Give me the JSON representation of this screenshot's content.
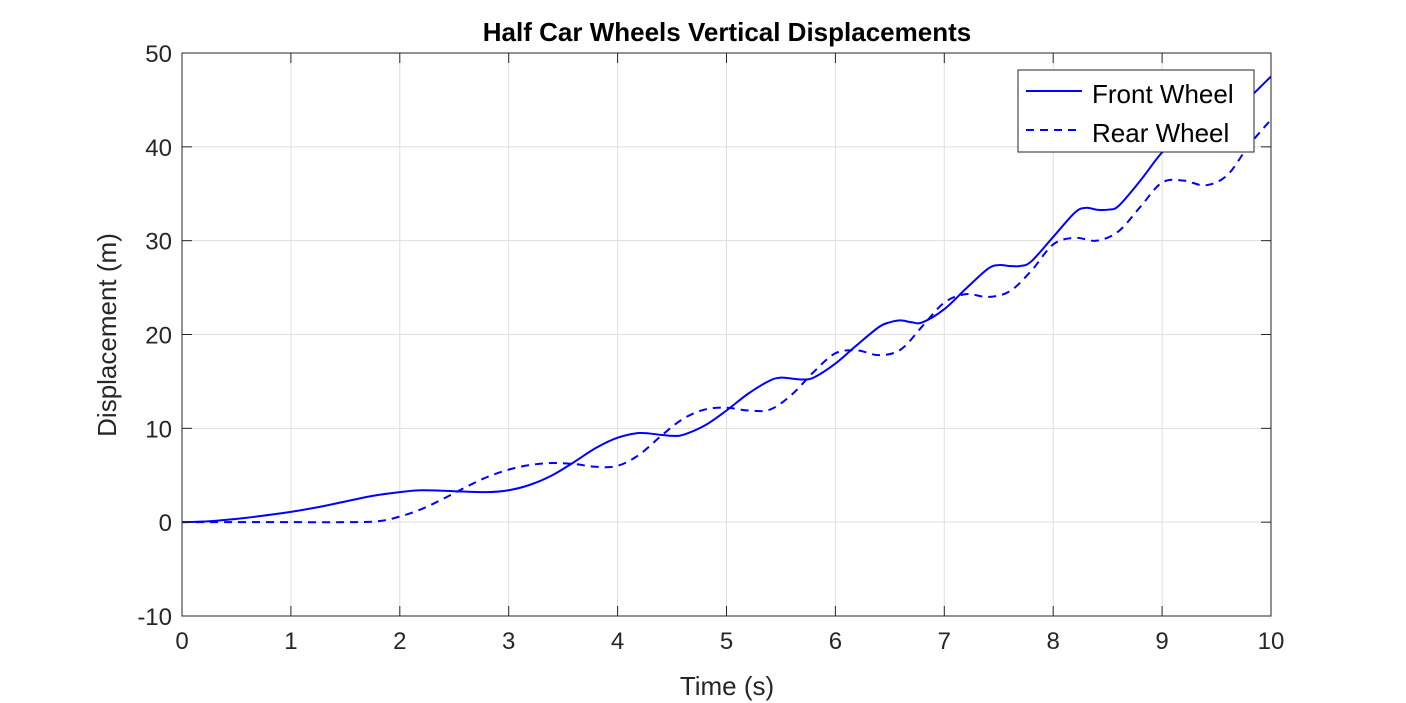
{
  "chart_data": {
    "type": "line",
    "title": "Half Car Wheels Vertical Displacements",
    "xlabel": "Time (s)",
    "ylabel": "Displacement (m)",
    "xlim": [
      0,
      10
    ],
    "ylim": [
      -10,
      50
    ],
    "xticks": [
      0,
      1,
      2,
      3,
      4,
      5,
      6,
      7,
      8,
      9,
      10
    ],
    "yticks": [
      -10,
      0,
      10,
      20,
      30,
      40,
      50
    ],
    "xtick_labels": [
      "0",
      "1",
      "2",
      "3",
      "4",
      "5",
      "6",
      "7",
      "8",
      "9",
      "10"
    ],
    "ytick_labels": [
      "-10",
      "0",
      "10",
      "20",
      "30",
      "40",
      "50"
    ],
    "grid": true,
    "legend_position": "top-right",
    "series": [
      {
        "name": "Front Wheel",
        "style": "solid",
        "color": "#0000ff",
        "x": [
          0,
          0.25,
          0.5,
          0.75,
          1.0,
          1.25,
          1.5,
          1.75,
          2.0,
          2.2,
          2.5,
          2.8,
          3.0,
          3.2,
          3.4,
          3.6,
          3.8,
          4.0,
          4.2,
          4.4,
          4.5,
          4.6,
          4.8,
          5.0,
          5.2,
          5.4,
          5.5,
          5.6,
          5.7,
          5.8,
          6.0,
          6.2,
          6.4,
          6.5,
          6.6,
          6.7,
          6.8,
          7.0,
          7.2,
          7.4,
          7.5,
          7.6,
          7.7,
          7.8,
          8.0,
          8.2,
          8.3,
          8.4,
          8.5,
          8.6,
          8.8,
          9.0,
          9.1,
          9.2,
          9.3,
          9.4,
          9.6,
          9.8,
          10.0
        ],
        "y": [
          0,
          0.1,
          0.35,
          0.7,
          1.1,
          1.6,
          2.2,
          2.8,
          3.2,
          3.4,
          3.3,
          3.2,
          3.4,
          4.0,
          5.0,
          6.4,
          7.9,
          9.0,
          9.5,
          9.3,
          9.2,
          9.3,
          10.3,
          11.9,
          13.7,
          15.1,
          15.4,
          15.3,
          15.2,
          15.4,
          16.9,
          18.9,
          20.8,
          21.3,
          21.5,
          21.3,
          21.3,
          22.7,
          24.9,
          27.0,
          27.4,
          27.3,
          27.3,
          27.8,
          30.4,
          33.0,
          33.5,
          33.3,
          33.3,
          33.7,
          36.4,
          39.4,
          39.9,
          39.8,
          39.9,
          40.3,
          42.8,
          45.2,
          47.5
        ]
      },
      {
        "name": "Rear Wheel",
        "style": "dashed",
        "color": "#0000ff",
        "x": [
          0,
          0.5,
          1.0,
          1.5,
          1.8,
          2.0,
          2.2,
          2.4,
          2.6,
          2.8,
          3.0,
          3.2,
          3.4,
          3.6,
          3.8,
          4.0,
          4.2,
          4.4,
          4.6,
          4.8,
          5.0,
          5.2,
          5.4,
          5.6,
          5.8,
          6.0,
          6.2,
          6.4,
          6.6,
          6.8,
          7.0,
          7.2,
          7.4,
          7.6,
          7.8,
          8.0,
          8.2,
          8.4,
          8.6,
          8.8,
          9.0,
          9.2,
          9.4,
          9.6,
          9.8,
          10.0
        ],
        "y": [
          0,
          0,
          0,
          0,
          0.1,
          0.6,
          1.4,
          2.5,
          3.7,
          4.8,
          5.6,
          6.1,
          6.3,
          6.2,
          5.9,
          6.0,
          7.2,
          9.2,
          11.0,
          12.0,
          12.2,
          11.9,
          12.0,
          13.6,
          16.0,
          18.0,
          18.3,
          17.8,
          18.4,
          20.9,
          23.4,
          24.3,
          24.0,
          24.6,
          26.8,
          29.6,
          30.3,
          30.0,
          31.0,
          33.6,
          36.2,
          36.4,
          35.9,
          37.0,
          40.2,
          42.9
        ]
      }
    ]
  }
}
